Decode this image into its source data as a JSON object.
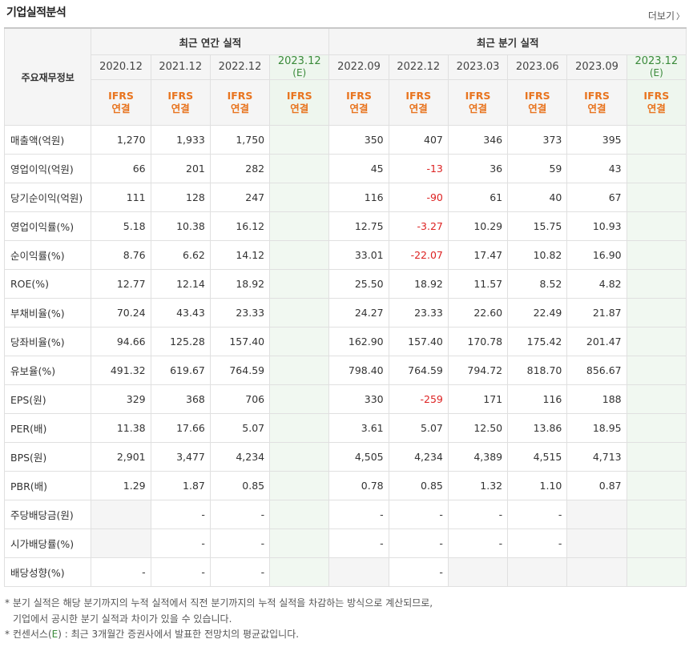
{
  "header": {
    "title": "기업실적분석",
    "more": "더보기"
  },
  "table": {
    "corner_label": "주요재무정보",
    "annual_group": "최근 연간 실적",
    "quarter_group": "최근 분기 실적",
    "periods": [
      {
        "label": "2020.12",
        "sub": "",
        "ifrs": "IFRS",
        "basis": "연결",
        "est": false
      },
      {
        "label": "2021.12",
        "sub": "",
        "ifrs": "IFRS",
        "basis": "연결",
        "est": false
      },
      {
        "label": "2022.12",
        "sub": "",
        "ifrs": "IFRS",
        "basis": "연결",
        "est": false
      },
      {
        "label": "2023.12",
        "sub": "(E)",
        "ifrs": "IFRS",
        "basis": "연결",
        "est": true
      },
      {
        "label": "2022.09",
        "sub": "",
        "ifrs": "IFRS",
        "basis": "연결",
        "est": false
      },
      {
        "label": "2022.12",
        "sub": "",
        "ifrs": "IFRS",
        "basis": "연결",
        "est": false
      },
      {
        "label": "2023.03",
        "sub": "",
        "ifrs": "IFRS",
        "basis": "연결",
        "est": false
      },
      {
        "label": "2023.06",
        "sub": "",
        "ifrs": "IFRS",
        "basis": "연결",
        "est": false
      },
      {
        "label": "2023.09",
        "sub": "",
        "ifrs": "IFRS",
        "basis": "연결",
        "est": false
      },
      {
        "label": "2023.12",
        "sub": "(E)",
        "ifrs": "IFRS",
        "basis": "연결",
        "est": true
      }
    ],
    "rows": [
      {
        "label": "매출액(억원)",
        "sep": true,
        "values": [
          "1,270",
          "1,933",
          "1,750",
          "",
          "350",
          "407",
          "346",
          "373",
          "395",
          ""
        ]
      },
      {
        "label": "영업이익(억원)",
        "sep": false,
        "values": [
          "66",
          "201",
          "282",
          "",
          "45",
          "-13",
          "36",
          "59",
          "43",
          ""
        ]
      },
      {
        "label": "당기순이익(억원)",
        "sep": false,
        "values": [
          "111",
          "128",
          "247",
          "",
          "116",
          "-90",
          "61",
          "40",
          "67",
          ""
        ]
      },
      {
        "label": "영업이익률(%)",
        "sep": true,
        "values": [
          "5.18",
          "10.38",
          "16.12",
          "",
          "12.75",
          "-3.27",
          "10.29",
          "15.75",
          "10.93",
          ""
        ]
      },
      {
        "label": "순이익률(%)",
        "sep": false,
        "values": [
          "8.76",
          "6.62",
          "14.12",
          "",
          "33.01",
          "-22.07",
          "17.47",
          "10.82",
          "16.90",
          ""
        ]
      },
      {
        "label": "ROE(%)",
        "sep": false,
        "values": [
          "12.77",
          "12.14",
          "18.92",
          "",
          "25.50",
          "18.92",
          "11.57",
          "8.52",
          "4.82",
          ""
        ]
      },
      {
        "label": "부채비율(%)",
        "sep": true,
        "values": [
          "70.24",
          "43.43",
          "23.33",
          "",
          "24.27",
          "23.33",
          "22.60",
          "22.49",
          "21.87",
          ""
        ]
      },
      {
        "label": "당좌비율(%)",
        "sep": false,
        "values": [
          "94.66",
          "125.28",
          "157.40",
          "",
          "162.90",
          "157.40",
          "170.78",
          "175.42",
          "201.47",
          ""
        ]
      },
      {
        "label": "유보율(%)",
        "sep": false,
        "values": [
          "491.32",
          "619.67",
          "764.59",
          "",
          "798.40",
          "764.59",
          "794.72",
          "818.70",
          "856.67",
          ""
        ]
      },
      {
        "label": "EPS(원)",
        "sep": true,
        "values": [
          "329",
          "368",
          "706",
          "",
          "330",
          "-259",
          "171",
          "116",
          "188",
          ""
        ]
      },
      {
        "label": "PER(배)",
        "sep": false,
        "values": [
          "11.38",
          "17.66",
          "5.07",
          "",
          "3.61",
          "5.07",
          "12.50",
          "13.86",
          "18.95",
          ""
        ]
      },
      {
        "label": "BPS(원)",
        "sep": false,
        "values": [
          "2,901",
          "3,477",
          "4,234",
          "",
          "4,505",
          "4,234",
          "4,389",
          "4,515",
          "4,713",
          ""
        ]
      },
      {
        "label": "PBR(배)",
        "sep": false,
        "values": [
          "1.29",
          "1.87",
          "0.85",
          "",
          "0.78",
          "0.85",
          "1.32",
          "1.10",
          "0.87",
          ""
        ]
      },
      {
        "label": "주당배당금(원)",
        "sep": true,
        "values": [
          "",
          "-",
          "-",
          "",
          "-",
          "-",
          "-",
          "-",
          "",
          ""
        ],
        "gray": [
          0,
          8
        ]
      },
      {
        "label": "시가배당률(%)",
        "sep": false,
        "values": [
          "",
          "-",
          "-",
          "",
          "-",
          "-",
          "-",
          "-",
          "",
          ""
        ],
        "gray": [
          0,
          8
        ]
      },
      {
        "label": "배당성향(%)",
        "sep": false,
        "values": [
          "-",
          "-",
          "-",
          "",
          "",
          "-",
          "",
          "",
          "",
          ""
        ],
        "gray": [
          4,
          6,
          7,
          8
        ]
      }
    ]
  },
  "notes": {
    "line1": "* 분기 실적은 해당 분기까지의 누적 실적에서 직전 분기까지의 누적 실적을 차감하는 방식으로 계산되므로,",
    "line2": "기업에서 공시한 분기 실적과 차이가 있을 수 있습니다.",
    "line3_prefix": "* 컨센서스(",
    "line3_e": "E",
    "line3_suffix": ") : 최근 3개월간 증권사에서 발표한 전망치의 평균값입니다."
  }
}
